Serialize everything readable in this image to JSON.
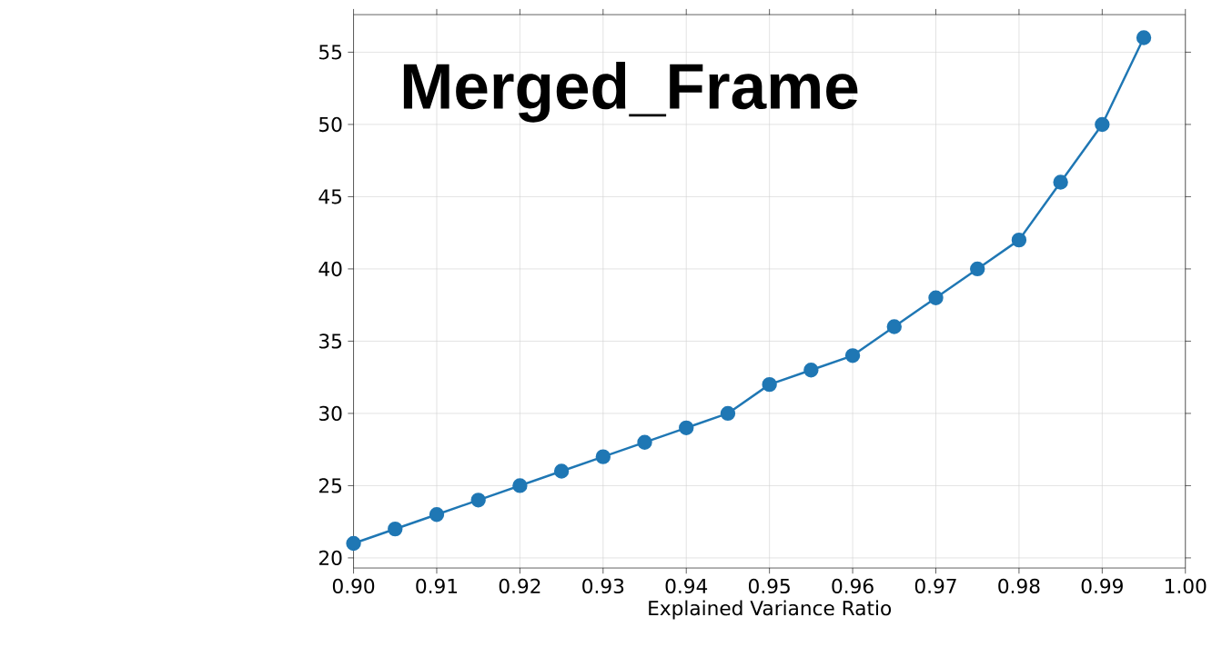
{
  "chart_data": {
    "type": "line",
    "title": "Merged_Frame",
    "xlabel": "Explained Variance Ratio",
    "x": [
      0.9,
      0.905,
      0.91,
      0.915,
      0.92,
      0.925,
      0.93,
      0.935,
      0.94,
      0.945,
      0.95,
      0.955,
      0.96,
      0.965,
      0.97,
      0.975,
      0.98,
      0.985,
      0.99,
      0.995
    ],
    "series": [
      {
        "color": "#1f77b4",
        "values": [
          21,
          22,
          23,
          24,
          25,
          26,
          27,
          28,
          29,
          30,
          32,
          33,
          34,
          36,
          38,
          40,
          42,
          46,
          50,
          56
        ]
      }
    ],
    "xlim": [
      0.9,
      1.0
    ],
    "ylim": [
      19.3,
      57.6
    ],
    "xticks": [
      {
        "value": 0.9,
        "label": "0.90"
      },
      0.91,
      0.92,
      0.93,
      0.94,
      0.95,
      0.96,
      0.97,
      0.98,
      0.99,
      {
        "value": 1.0,
        "label": "1.00"
      }
    ],
    "yticks": [
      20,
      25,
      30,
      35,
      40,
      45,
      50,
      55
    ],
    "grid": true,
    "marker": "circle",
    "line_style": "solid"
  }
}
